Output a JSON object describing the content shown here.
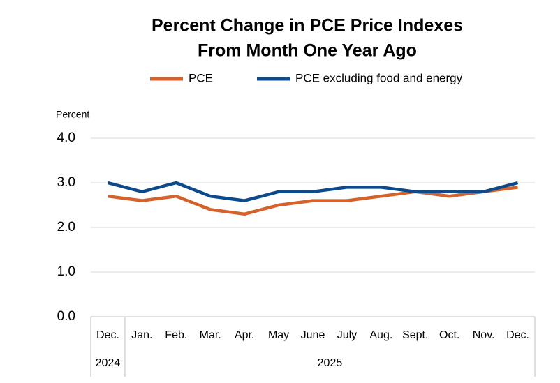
{
  "chart_data": {
    "type": "line",
    "title": [
      "Percent Change in PCE Price Indexes",
      "From Month One Year Ago"
    ],
    "y_label": "Percent",
    "categories": [
      "Dec.",
      "Jan.",
      "Feb.",
      "Mar.",
      "Apr.",
      "May",
      "June",
      "July",
      "Aug.",
      "Sept.",
      "Oct.",
      "Nov.",
      "Dec."
    ],
    "year_groups": [
      {
        "label": "2024",
        "count": 1
      },
      {
        "label": "2025",
        "count": 12
      }
    ],
    "series": [
      {
        "name": "PCE",
        "color": "#d4622a",
        "values": [
          2.7,
          2.6,
          2.7,
          2.4,
          2.3,
          2.5,
          2.6,
          2.6,
          2.7,
          2.8,
          2.7,
          2.8,
          2.9
        ]
      },
      {
        "name": "PCE excluding food and energy",
        "color": "#0d4a8c",
        "values": [
          3.0,
          2.8,
          3.0,
          2.7,
          2.6,
          2.8,
          2.8,
          2.9,
          2.9,
          2.8,
          2.8,
          2.8,
          3.0
        ]
      }
    ],
    "ylim": [
      0,
      4
    ],
    "yticks": [
      {
        "value": 0,
        "label": "0.0"
      },
      {
        "value": 1,
        "label": "1.0"
      },
      {
        "value": 2,
        "label": "2.0"
      },
      {
        "value": 3,
        "label": "3.0"
      },
      {
        "value": 4,
        "label": "4.0"
      }
    ],
    "grid": true
  }
}
